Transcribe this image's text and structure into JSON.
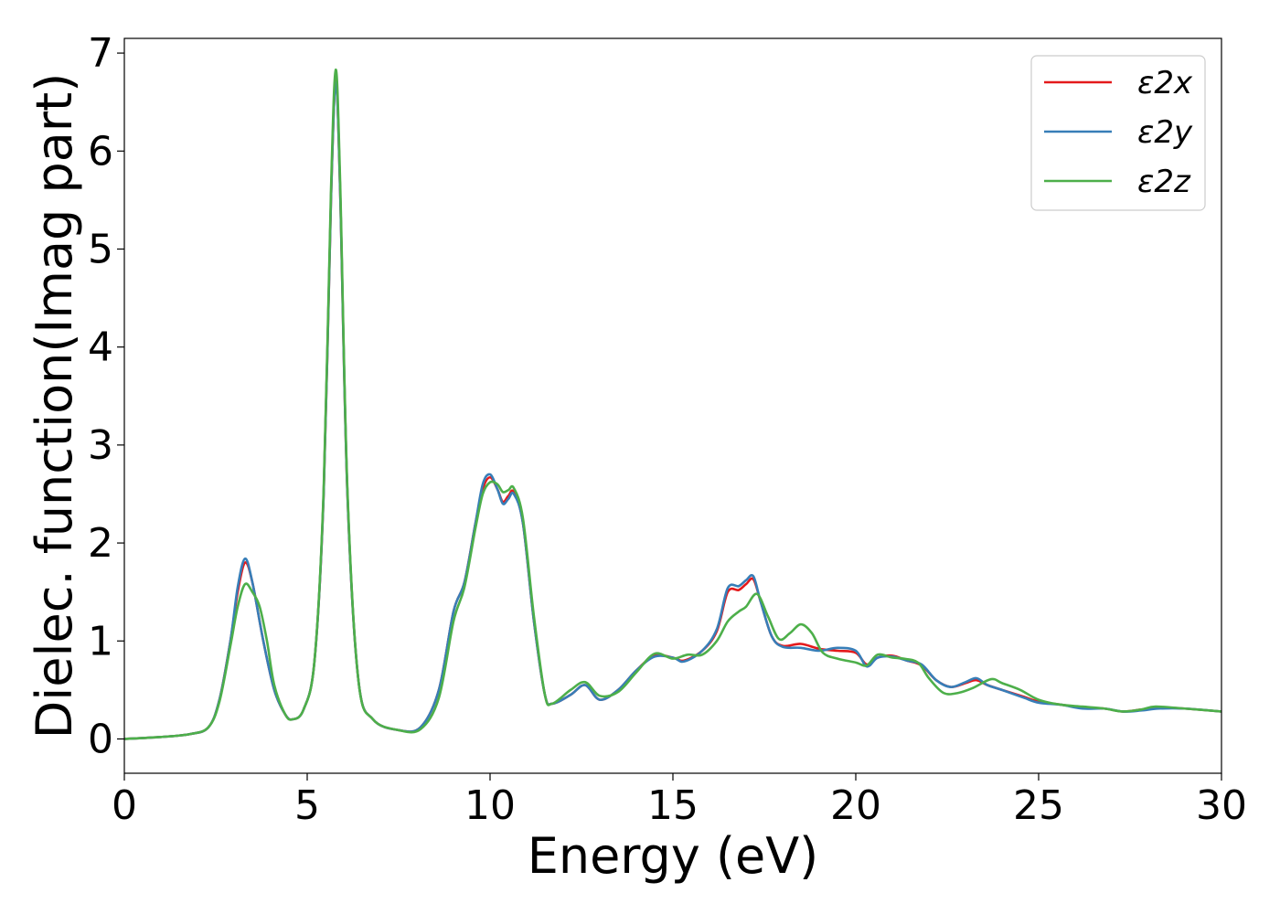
{
  "chart_data": {
    "type": "line",
    "title": "",
    "xlabel": "Energy (eV)",
    "ylabel": "Dielec. function(Imag part)",
    "xlim": [
      0,
      30
    ],
    "ylim": [
      -0.35,
      7.15
    ],
    "xticks": [
      "0",
      "5",
      "10",
      "15",
      "20",
      "25",
      "30"
    ],
    "yticks": [
      "0",
      "1",
      "2",
      "3",
      "4",
      "5",
      "6",
      "7"
    ],
    "grid": false,
    "legend_position": "top-right",
    "series": [
      {
        "name": "ε2x",
        "color": "#e41a1c",
        "points": [
          [
            0,
            0
          ],
          [
            1,
            0.02
          ],
          [
            1.8,
            0.05
          ],
          [
            2.3,
            0.12
          ],
          [
            2.6,
            0.4
          ],
          [
            2.9,
            1.0
          ],
          [
            3.1,
            1.5
          ],
          [
            3.3,
            1.8
          ],
          [
            3.5,
            1.6
          ],
          [
            3.8,
            1.0
          ],
          [
            4.1,
            0.5
          ],
          [
            4.4,
            0.25
          ],
          [
            4.6,
            0.2
          ],
          [
            4.9,
            0.3
          ],
          [
            5.2,
            0.8
          ],
          [
            5.45,
            2.5
          ],
          [
            5.65,
            5.5
          ],
          [
            5.78,
            6.72
          ],
          [
            5.9,
            5.6
          ],
          [
            6.1,
            2.5
          ],
          [
            6.4,
            0.6
          ],
          [
            6.8,
            0.2
          ],
          [
            7.5,
            0.09
          ],
          [
            8.1,
            0.12
          ],
          [
            8.6,
            0.5
          ],
          [
            9.0,
            1.3
          ],
          [
            9.3,
            1.6
          ],
          [
            9.6,
            2.2
          ],
          [
            9.8,
            2.55
          ],
          [
            10.0,
            2.67
          ],
          [
            10.2,
            2.55
          ],
          [
            10.35,
            2.42
          ],
          [
            10.5,
            2.48
          ],
          [
            10.65,
            2.52
          ],
          [
            10.9,
            2.2
          ],
          [
            11.2,
            1.2
          ],
          [
            11.5,
            0.45
          ],
          [
            11.7,
            0.36
          ],
          [
            12.2,
            0.45
          ],
          [
            12.6,
            0.55
          ],
          [
            13.0,
            0.4
          ],
          [
            13.5,
            0.5
          ],
          [
            14.0,
            0.7
          ],
          [
            14.5,
            0.85
          ],
          [
            15.0,
            0.83
          ],
          [
            15.3,
            0.8
          ],
          [
            15.8,
            0.9
          ],
          [
            16.2,
            1.1
          ],
          [
            16.5,
            1.5
          ],
          [
            16.8,
            1.52
          ],
          [
            17.0,
            1.58
          ],
          [
            17.2,
            1.63
          ],
          [
            17.4,
            1.4
          ],
          [
            17.7,
            1.05
          ],
          [
            18.0,
            0.95
          ],
          [
            18.5,
            0.97
          ],
          [
            19.0,
            0.92
          ],
          [
            19.5,
            0.9
          ],
          [
            20.0,
            0.88
          ],
          [
            20.3,
            0.76
          ],
          [
            20.6,
            0.83
          ],
          [
            21.0,
            0.85
          ],
          [
            21.4,
            0.8
          ],
          [
            21.8,
            0.75
          ],
          [
            22.2,
            0.6
          ],
          [
            22.6,
            0.53
          ],
          [
            23.0,
            0.57
          ],
          [
            23.3,
            0.6
          ],
          [
            23.6,
            0.55
          ],
          [
            24.0,
            0.5
          ],
          [
            24.6,
            0.43
          ],
          [
            25.0,
            0.38
          ],
          [
            25.6,
            0.35
          ],
          [
            26.2,
            0.32
          ],
          [
            26.8,
            0.31
          ],
          [
            27.3,
            0.28
          ],
          [
            27.8,
            0.3
          ],
          [
            28.3,
            0.32
          ],
          [
            29.0,
            0.31
          ],
          [
            30.0,
            0.28
          ]
        ]
      },
      {
        "name": "ε2y",
        "color": "#377eb8",
        "points": [
          [
            0,
            0
          ],
          [
            1,
            0.02
          ],
          [
            1.8,
            0.05
          ],
          [
            2.3,
            0.12
          ],
          [
            2.6,
            0.4
          ],
          [
            2.9,
            1.0
          ],
          [
            3.1,
            1.55
          ],
          [
            3.3,
            1.84
          ],
          [
            3.5,
            1.6
          ],
          [
            3.8,
            1.0
          ],
          [
            4.1,
            0.5
          ],
          [
            4.4,
            0.25
          ],
          [
            4.6,
            0.2
          ],
          [
            4.9,
            0.3
          ],
          [
            5.2,
            0.8
          ],
          [
            5.45,
            2.5
          ],
          [
            5.65,
            5.5
          ],
          [
            5.78,
            6.7
          ],
          [
            5.9,
            5.6
          ],
          [
            6.1,
            2.5
          ],
          [
            6.4,
            0.6
          ],
          [
            6.8,
            0.2
          ],
          [
            7.5,
            0.09
          ],
          [
            8.1,
            0.12
          ],
          [
            8.6,
            0.5
          ],
          [
            9.0,
            1.3
          ],
          [
            9.3,
            1.6
          ],
          [
            9.6,
            2.2
          ],
          [
            9.8,
            2.6
          ],
          [
            10.0,
            2.7
          ],
          [
            10.2,
            2.55
          ],
          [
            10.35,
            2.4
          ],
          [
            10.5,
            2.45
          ],
          [
            10.65,
            2.5
          ],
          [
            10.9,
            2.2
          ],
          [
            11.2,
            1.2
          ],
          [
            11.5,
            0.45
          ],
          [
            11.7,
            0.36
          ],
          [
            12.2,
            0.45
          ],
          [
            12.6,
            0.55
          ],
          [
            13.0,
            0.4
          ],
          [
            13.5,
            0.5
          ],
          [
            14.0,
            0.7
          ],
          [
            14.5,
            0.84
          ],
          [
            15.0,
            0.83
          ],
          [
            15.3,
            0.79
          ],
          [
            15.8,
            0.9
          ],
          [
            16.2,
            1.12
          ],
          [
            16.5,
            1.54
          ],
          [
            16.8,
            1.56
          ],
          [
            17.0,
            1.62
          ],
          [
            17.2,
            1.66
          ],
          [
            17.4,
            1.4
          ],
          [
            17.7,
            1.05
          ],
          [
            18.0,
            0.94
          ],
          [
            18.5,
            0.93
          ],
          [
            19.0,
            0.9
          ],
          [
            19.5,
            0.93
          ],
          [
            20.0,
            0.9
          ],
          [
            20.3,
            0.74
          ],
          [
            20.6,
            0.83
          ],
          [
            21.0,
            0.84
          ],
          [
            21.4,
            0.8
          ],
          [
            21.8,
            0.76
          ],
          [
            22.2,
            0.6
          ],
          [
            22.6,
            0.53
          ],
          [
            23.0,
            0.58
          ],
          [
            23.3,
            0.62
          ],
          [
            23.6,
            0.55
          ],
          [
            24.0,
            0.5
          ],
          [
            24.6,
            0.42
          ],
          [
            25.0,
            0.37
          ],
          [
            25.6,
            0.35
          ],
          [
            26.2,
            0.31
          ],
          [
            26.8,
            0.31
          ],
          [
            27.3,
            0.28
          ],
          [
            27.8,
            0.29
          ],
          [
            28.3,
            0.31
          ],
          [
            29.0,
            0.31
          ],
          [
            30.0,
            0.28
          ]
        ]
      },
      {
        "name": "ε2z",
        "color": "#4daf4a",
        "points": [
          [
            0,
            0
          ],
          [
            1,
            0.02
          ],
          [
            1.8,
            0.05
          ],
          [
            2.3,
            0.12
          ],
          [
            2.6,
            0.38
          ],
          [
            2.9,
            0.95
          ],
          [
            3.1,
            1.35
          ],
          [
            3.3,
            1.58
          ],
          [
            3.5,
            1.5
          ],
          [
            3.7,
            1.35
          ],
          [
            3.9,
            1.0
          ],
          [
            4.1,
            0.55
          ],
          [
            4.4,
            0.25
          ],
          [
            4.6,
            0.2
          ],
          [
            4.9,
            0.3
          ],
          [
            5.2,
            0.8
          ],
          [
            5.45,
            2.55
          ],
          [
            5.65,
            5.6
          ],
          [
            5.78,
            6.83
          ],
          [
            5.9,
            5.7
          ],
          [
            6.1,
            2.55
          ],
          [
            6.4,
            0.6
          ],
          [
            6.8,
            0.2
          ],
          [
            7.5,
            0.09
          ],
          [
            8.1,
            0.1
          ],
          [
            8.6,
            0.42
          ],
          [
            9.0,
            1.2
          ],
          [
            9.3,
            1.55
          ],
          [
            9.6,
            2.15
          ],
          [
            9.8,
            2.5
          ],
          [
            10.0,
            2.62
          ],
          [
            10.2,
            2.6
          ],
          [
            10.35,
            2.52
          ],
          [
            10.5,
            2.54
          ],
          [
            10.65,
            2.56
          ],
          [
            10.9,
            2.25
          ],
          [
            11.2,
            1.25
          ],
          [
            11.5,
            0.45
          ],
          [
            11.7,
            0.36
          ],
          [
            12.2,
            0.5
          ],
          [
            12.6,
            0.58
          ],
          [
            13.0,
            0.44
          ],
          [
            13.5,
            0.48
          ],
          [
            14.0,
            0.68
          ],
          [
            14.5,
            0.87
          ],
          [
            15.0,
            0.82
          ],
          [
            15.4,
            0.86
          ],
          [
            15.8,
            0.86
          ],
          [
            16.2,
            1.0
          ],
          [
            16.5,
            1.2
          ],
          [
            16.8,
            1.3
          ],
          [
            17.0,
            1.35
          ],
          [
            17.3,
            1.48
          ],
          [
            17.6,
            1.25
          ],
          [
            17.9,
            1.02
          ],
          [
            18.2,
            1.08
          ],
          [
            18.5,
            1.17
          ],
          [
            18.8,
            1.08
          ],
          [
            19.1,
            0.88
          ],
          [
            19.5,
            0.82
          ],
          [
            20.0,
            0.78
          ],
          [
            20.3,
            0.75
          ],
          [
            20.6,
            0.86
          ],
          [
            21.0,
            0.83
          ],
          [
            21.3,
            0.82
          ],
          [
            21.7,
            0.78
          ],
          [
            22.0,
            0.62
          ],
          [
            22.4,
            0.47
          ],
          [
            22.8,
            0.47
          ],
          [
            23.2,
            0.52
          ],
          [
            23.7,
            0.61
          ],
          [
            24.0,
            0.57
          ],
          [
            24.5,
            0.5
          ],
          [
            25.0,
            0.4
          ],
          [
            25.6,
            0.35
          ],
          [
            26.2,
            0.33
          ],
          [
            26.8,
            0.31
          ],
          [
            27.3,
            0.28
          ],
          [
            27.8,
            0.3
          ],
          [
            28.2,
            0.33
          ],
          [
            29.0,
            0.31
          ],
          [
            30.0,
            0.28
          ]
        ]
      }
    ]
  }
}
